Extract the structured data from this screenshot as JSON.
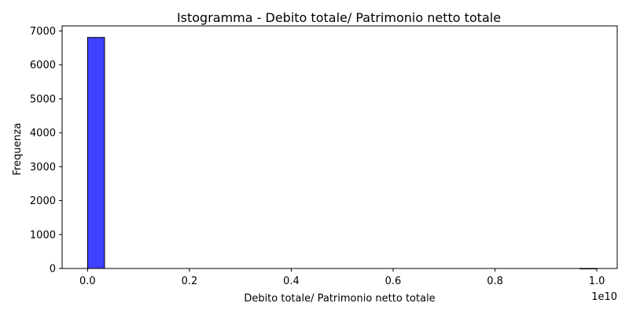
{
  "chart_data": {
    "type": "bar",
    "subtype": "histogram",
    "title": "Istogramma - Debito totale/ Patrimonio netto totale",
    "xlabel": "Debito totale/ Patrimonio netto totale",
    "ylabel": "Frequenza",
    "x_offset_label": "1e10",
    "x_scale": 10000000000,
    "xlim": [
      -0.05,
      1.04
    ],
    "ylim": [
      0,
      7150
    ],
    "x_ticks": [
      0.0,
      0.2,
      0.4,
      0.6,
      0.8,
      1.0
    ],
    "x_tick_labels": [
      "0.0",
      "0.2",
      "0.4",
      "0.6",
      "0.8",
      "1.0"
    ],
    "y_ticks": [
      0,
      1000,
      2000,
      3000,
      4000,
      5000,
      6000,
      7000
    ],
    "y_tick_labels": [
      "0",
      "1000",
      "2000",
      "3000",
      "4000",
      "5000",
      "6000",
      "7000"
    ],
    "bin_edges": [
      0.0,
      0.0333,
      0.0667,
      0.1,
      0.1333,
      0.1667,
      0.2,
      0.2333,
      0.2667,
      0.3,
      0.3333,
      0.3667,
      0.4,
      0.4333,
      0.4667,
      0.5,
      0.5333,
      0.5667,
      0.6,
      0.6333,
      0.6667,
      0.7,
      0.7333,
      0.7667,
      0.8,
      0.8333,
      0.8667,
      0.9,
      0.9333,
      0.9667,
      1.0
    ],
    "values": [
      6810,
      0,
      0,
      0,
      0,
      0,
      0,
      0,
      0,
      0,
      0,
      0,
      0,
      0,
      0,
      0,
      0,
      0,
      0,
      0,
      0,
      0,
      0,
      0,
      0,
      0,
      0,
      0,
      0,
      1
    ],
    "bar_color": "#4040ff",
    "bar_edge_color": "#000000",
    "grid": false,
    "legend": "none"
  }
}
